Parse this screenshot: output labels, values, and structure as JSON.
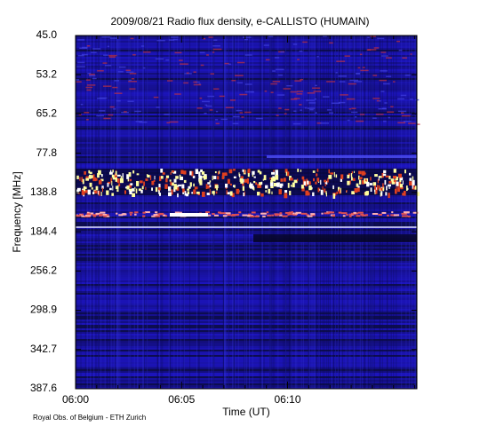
{
  "chart_data": {
    "type": "spectrogram",
    "title": "2009/08/21  Radio flux density, e-CALLISTO (HUMAIN)",
    "y_label": "Frequency [MHz]",
    "x_label": "Time (UT)",
    "footer": "Royal Obs. of Belgium - ETH Zurich",
    "y_categories": [
      "45.0",
      "53.2",
      "65.2",
      "77.8",
      "138.8",
      "184.4",
      "256.2",
      "298.9",
      "342.7",
      "387.6"
    ],
    "xlim": [
      0,
      16.1
    ],
    "xticks": [
      {
        "value": 0,
        "label": "06:00"
      },
      {
        "value": 5,
        "label": "06:05"
      },
      {
        "value": 10,
        "label": "06:10"
      }
    ],
    "xminorticks": [
      1,
      2,
      3,
      4,
      6,
      7,
      8,
      9,
      11,
      12,
      13,
      14,
      15,
      16
    ]
  }
}
